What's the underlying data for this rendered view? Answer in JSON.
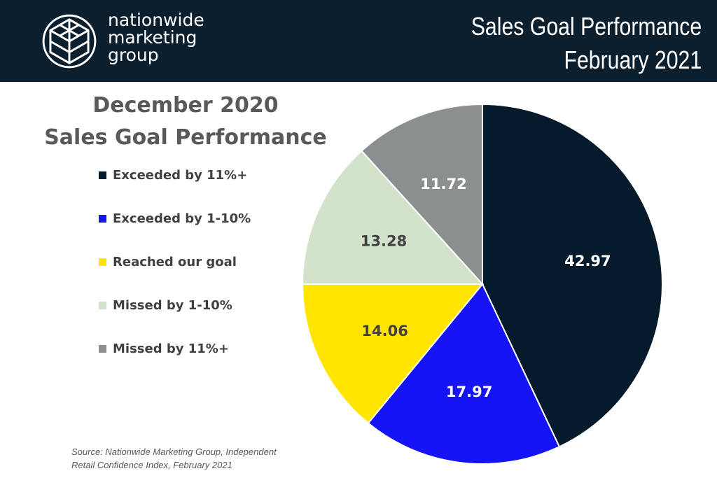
{
  "brand": {
    "lines": [
      "nationwide",
      "marketing",
      "group"
    ]
  },
  "banner": {
    "line1": "Sales Goal Performance",
    "line2": "February 2021"
  },
  "chart_data": {
    "type": "pie",
    "title": [
      "December 2020",
      "Sales Goal Performance"
    ],
    "legend_position": "left",
    "slices": [
      {
        "label": "Exceeded by 11%+",
        "value": 42.97,
        "display": "42.97",
        "color": "#051a2b",
        "label_color": "#ffffff"
      },
      {
        "label": "Exceeded by 1-10%",
        "value": 17.97,
        "display": "17.97",
        "color": "#1414f5",
        "label_color": "#ffffff"
      },
      {
        "label": "Reached our goal",
        "value": 14.06,
        "display": "14.06",
        "color": "#ffe500",
        "label_color": "#404040"
      },
      {
        "label": "Missed by 1-10%",
        "value": 13.28,
        "display": "13.28",
        "color": "#d2e2cb",
        "label_color": "#404040"
      },
      {
        "label": "Missed by 11%+",
        "value": 11.72,
        "display": "11.72",
        "color": "#8c8f90",
        "label_color": "#ffffff"
      }
    ]
  },
  "source": {
    "line1": "Source: Nationwide Marketing Group, Independent",
    "line2": "Retail Confidence Index, February 2021"
  }
}
